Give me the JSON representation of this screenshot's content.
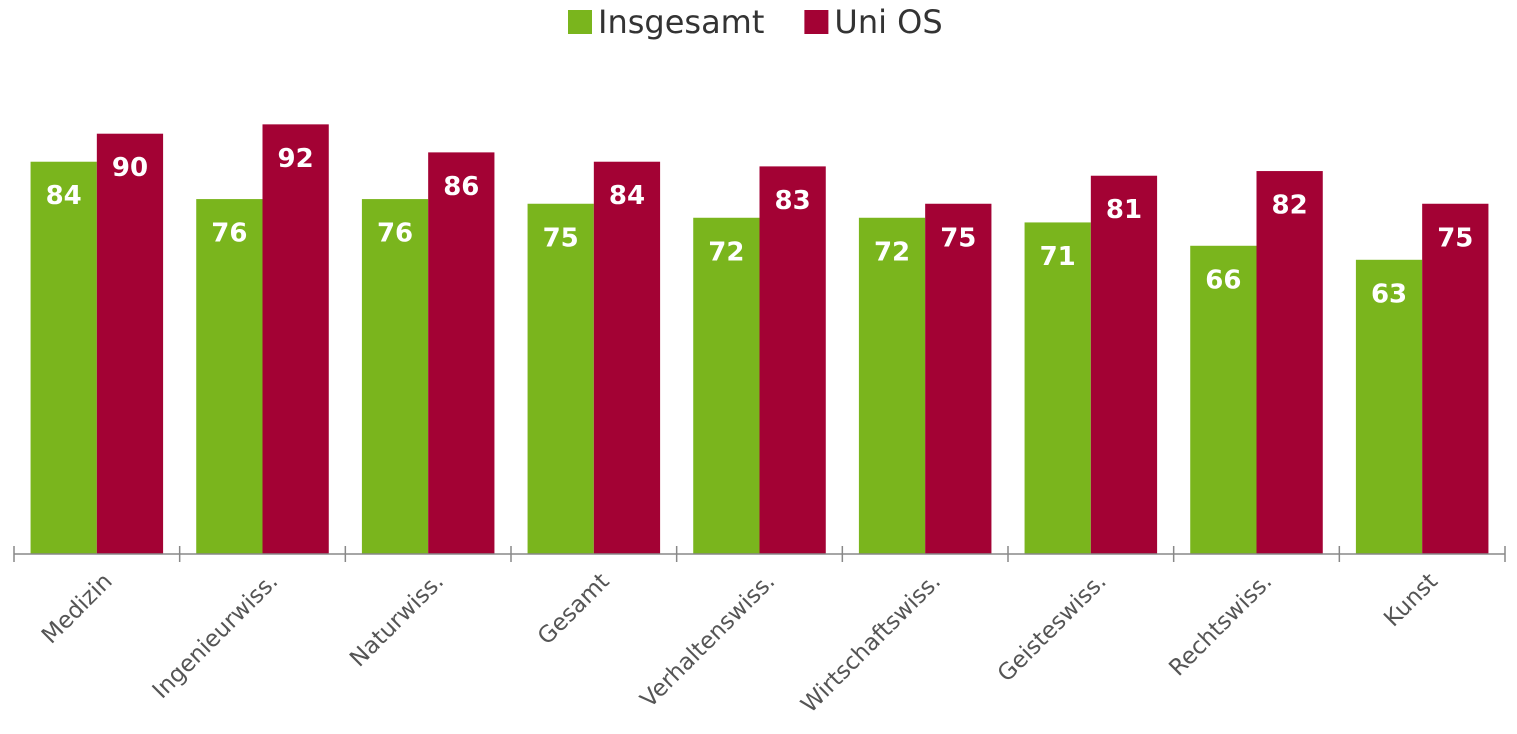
{
  "chart_data": {
    "type": "bar",
    "categories": [
      "Medizin",
      "Ingenieurwiss.",
      "Naturwiss.",
      "Gesamt",
      "Verhaltenswiss.",
      "Wirtschaftswiss.",
      "Geisteswiss.",
      "Rechtswiss.",
      "Kunst"
    ],
    "series": [
      {
        "name": "Insgesamt",
        "color": "#7ab51d",
        "values": [
          84,
          76,
          76,
          75,
          72,
          72,
          71,
          66,
          63
        ]
      },
      {
        "name": "Uni OS",
        "color": "#a30234",
        "values": [
          90,
          92,
          86,
          84,
          83,
          75,
          81,
          82,
          75
        ]
      }
    ],
    "ylim": [
      0,
      100
    ],
    "legend": "top"
  }
}
